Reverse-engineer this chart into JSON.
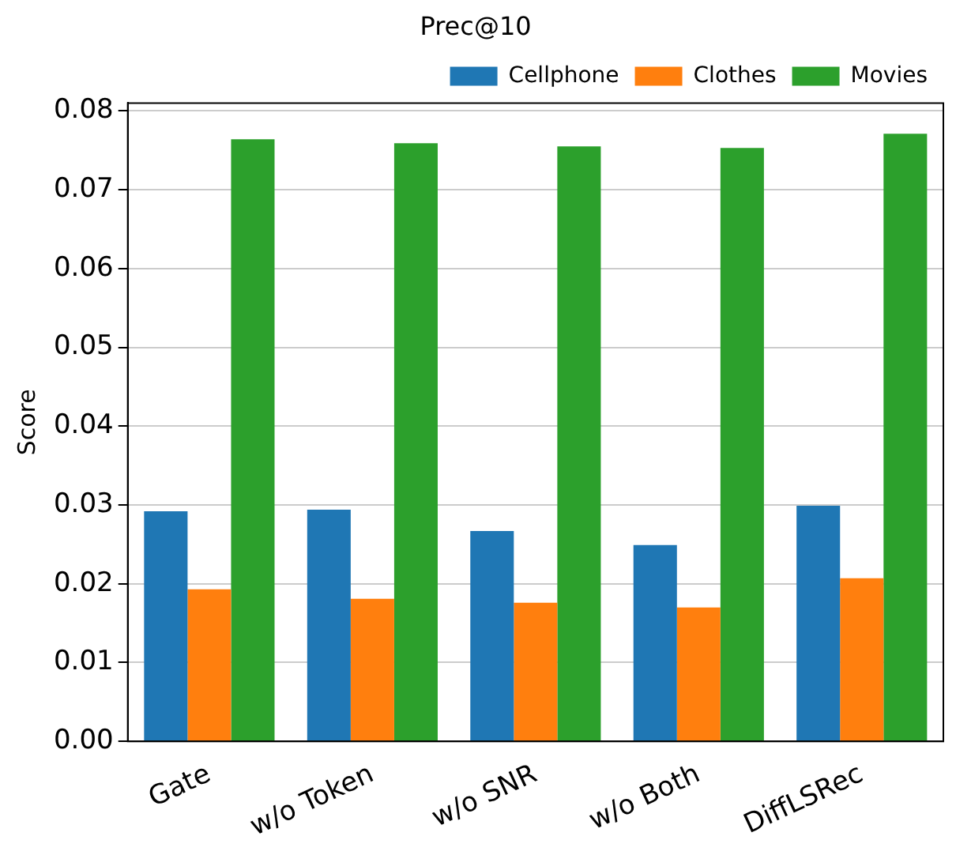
{
  "chart_data": {
    "type": "bar",
    "title": "Prec@10",
    "ylabel": "Score",
    "categories": [
      "Gate",
      "w/o Token",
      "w/o SNR",
      "w/o Both",
      "DiffLSRec"
    ],
    "series": [
      {
        "name": "Cellphone",
        "color": "#1f77b4",
        "values": [
          0.0292,
          0.0294,
          0.0267,
          0.0249,
          0.0299
        ]
      },
      {
        "name": "Clothes",
        "color": "#ff7f0e",
        "values": [
          0.0193,
          0.0181,
          0.0176,
          0.017,
          0.0207
        ]
      },
      {
        "name": "Movies",
        "color": "#2ca02c",
        "values": [
          0.0764,
          0.0759,
          0.0755,
          0.0753,
          0.0771
        ]
      }
    ],
    "ylim": [
      0,
      0.081
    ],
    "yticks": [
      {
        "value": 0,
        "label": "0.00"
      },
      {
        "value": 0.01,
        "label": "0.01"
      },
      {
        "value": 0.02,
        "label": "0.02"
      },
      {
        "value": 0.03,
        "label": "0.03"
      },
      {
        "value": 0.04,
        "label": "0.04"
      },
      {
        "value": 0.05,
        "label": "0.05"
      },
      {
        "value": 0.06,
        "label": "0.06"
      },
      {
        "value": 0.07,
        "label": "0.07"
      },
      {
        "value": 0.08,
        "label": "0.08"
      }
    ],
    "grid": "y",
    "legend": "top right"
  }
}
